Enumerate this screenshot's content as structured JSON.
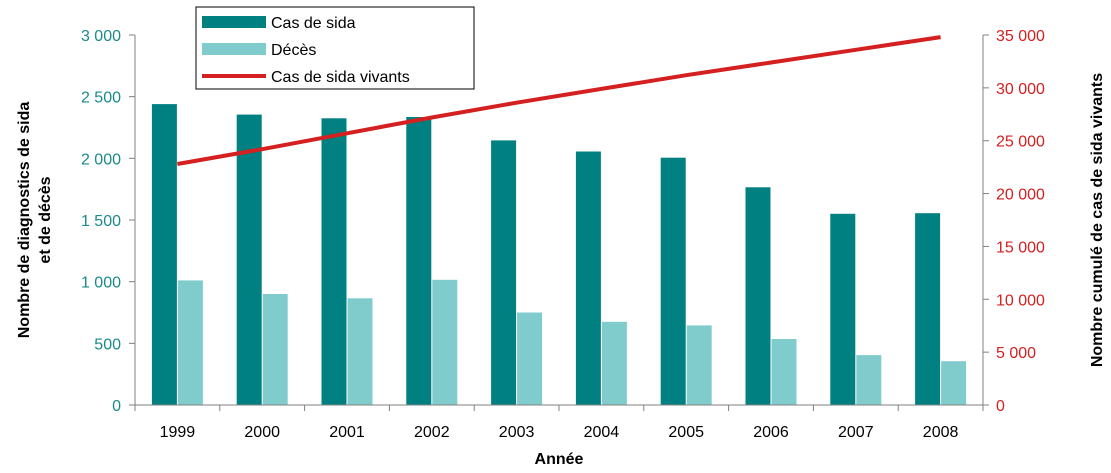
{
  "chart_data": {
    "type": "bar",
    "categories": [
      "1999",
      "2000",
      "2001",
      "2002",
      "2003",
      "2004",
      "2005",
      "2006",
      "2007",
      "2008"
    ],
    "series": [
      {
        "name": "Cas de sida",
        "type": "bar",
        "axis": "left",
        "color": "#008080",
        "values": [
          2440,
          2355,
          2325,
          2335,
          2145,
          2055,
          2005,
          1765,
          1550,
          1555
        ]
      },
      {
        "name": "Décès",
        "type": "bar",
        "axis": "left",
        "color": "#80cccc",
        "values": [
          1010,
          900,
          865,
          1015,
          750,
          675,
          645,
          535,
          405,
          355
        ]
      },
      {
        "name": "Cas de sida vivants",
        "type": "line",
        "axis": "right",
        "color": "#d42020",
        "values": [
          22800,
          24200,
          25700,
          27200,
          28600,
          29900,
          31200,
          32400,
          33600,
          34800
        ]
      }
    ],
    "y_left": {
      "label_line1": "Nombre de diagnostics de sida",
      "label_line2": "et de décès",
      "range": [
        0,
        3000
      ],
      "ticks": [
        0,
        500,
        1000,
        1500,
        2000,
        2500,
        3000
      ],
      "tick_labels": [
        "0",
        "500",
        "1 000",
        "1 500",
        "2 000",
        "2 500",
        "3 000"
      ],
      "color": "#1a8a8a"
    },
    "y_right": {
      "label": "Nombre cumulé de cas de sida vivants",
      "range": [
        0,
        35000
      ],
      "ticks": [
        0,
        5000,
        10000,
        15000,
        20000,
        25000,
        30000,
        35000
      ],
      "tick_labels": [
        "0",
        "5 000",
        "10 000",
        "15 000",
        "20 000",
        "25 000",
        "30 000",
        "35 000"
      ],
      "color": "#d42020"
    },
    "xlabel": "Année",
    "legend": {
      "position": "top-left",
      "items": [
        "Cas de sida",
        "Décès",
        "Cas de sida vivants"
      ]
    },
    "grid": false
  }
}
